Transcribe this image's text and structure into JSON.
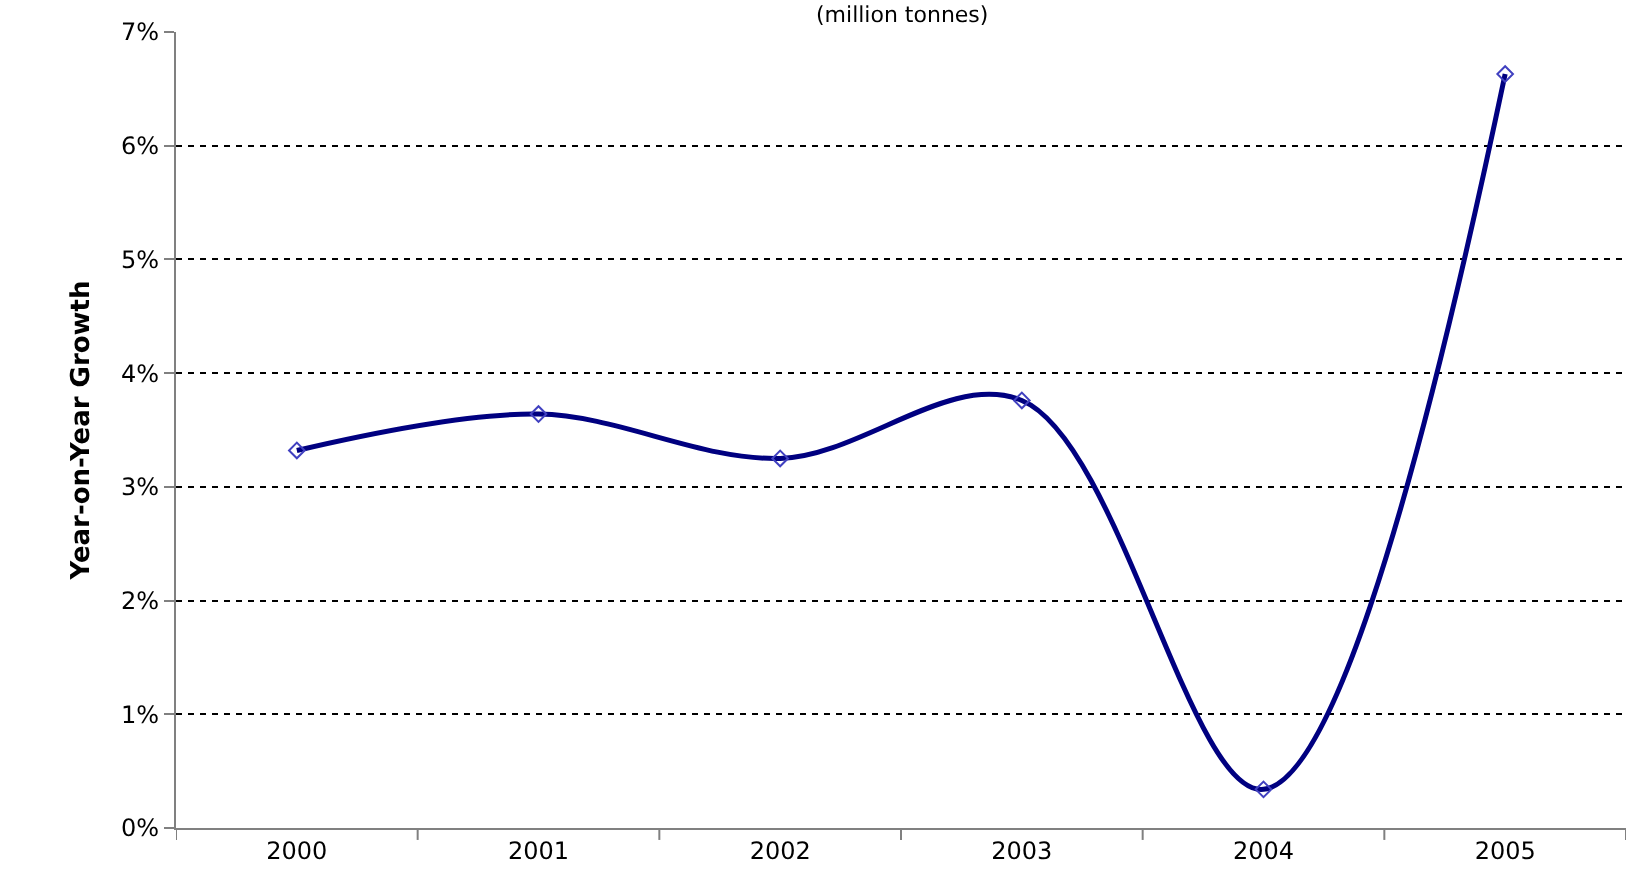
{
  "chart_data": {
    "type": "line",
    "subtitle": "(million tonnes)",
    "ylabel": "Year-on-Year Growth",
    "categories": [
      "2000",
      "2001",
      "2002",
      "2003",
      "2004",
      "2005"
    ],
    "series": [
      {
        "color": "#000080",
        "values": [
          3.32,
          3.64,
          3.25,
          3.76,
          0.34,
          6.63
        ]
      }
    ],
    "ylim": [
      0,
      7
    ],
    "yticks": [
      {
        "value": 0,
        "label": "0%"
      },
      {
        "value": 1,
        "label": "1%"
      },
      {
        "value": 2,
        "label": "2%"
      },
      {
        "value": 3,
        "label": "3%"
      },
      {
        "value": 4,
        "label": "4%"
      },
      {
        "value": 5,
        "label": "5%"
      },
      {
        "value": 6,
        "label": "6%"
      },
      {
        "value": 7,
        "label": "7%"
      }
    ],
    "grid": "y",
    "marker": "diamond",
    "line_style": "solid"
  }
}
